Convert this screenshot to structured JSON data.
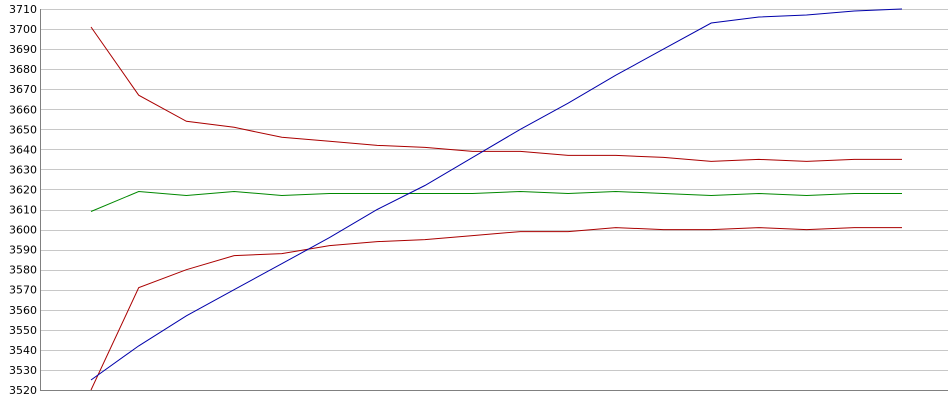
{
  "chart_data": {
    "type": "line",
    "title": "",
    "xlabel": "",
    "ylabel": "",
    "ylim": [
      3520,
      3710
    ],
    "yticks": [
      3520,
      3530,
      3540,
      3550,
      3560,
      3570,
      3580,
      3590,
      3600,
      3610,
      3620,
      3630,
      3640,
      3650,
      3660,
      3670,
      3680,
      3690,
      3700,
      3710
    ],
    "grid": true,
    "x": [
      0,
      1,
      2,
      3,
      4,
      5,
      6,
      7,
      8,
      9,
      10,
      11,
      12,
      13,
      14,
      15,
      16,
      17
    ],
    "series": [
      {
        "color": "#aa0000",
        "values": [
          3701,
          3667,
          3654,
          3651,
          3646,
          3644,
          3642,
          3641,
          3639,
          3639,
          3637,
          3637,
          3636,
          3634,
          3635,
          3634,
          3635,
          3635
        ]
      },
      {
        "color": "#aa0000",
        "values": [
          3520,
          3571,
          3580,
          3587,
          3588,
          3592,
          3594,
          3595,
          3597,
          3599,
          3599,
          3601,
          3600,
          3600,
          3601,
          3600,
          3601,
          3601
        ]
      },
      {
        "color": "#008800",
        "values": [
          3609,
          3619,
          3617,
          3619,
          3617,
          3618,
          3618,
          3618,
          3618,
          3619,
          3618,
          3619,
          3618,
          3617,
          3618,
          3617,
          3618,
          3618
        ]
      },
      {
        "color": "#0000aa",
        "values": [
          3525,
          3542,
          3557,
          3570,
          3583,
          3596,
          3610,
          3622,
          3636,
          3650,
          3663,
          3677,
          3690,
          3703,
          3706,
          3707,
          3709,
          3710
        ]
      }
    ]
  }
}
